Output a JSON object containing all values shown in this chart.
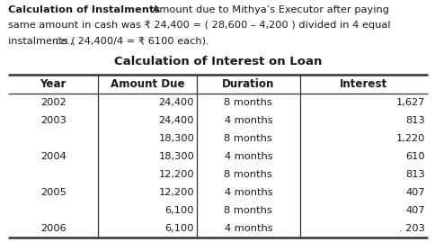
{
  "bold_text": "Calculation of Instalments",
  "line1_rest": " Amount due to Mithya’s Executor after paying",
  "line2": "same amount in cash was ₹ 24,400 = ( 28,600 – 4,200 ) divided in 4 equal",
  "line3_pre": "instalments (",
  "line3_italic": "i.e.,",
  "line3_post": " 24,400/4 = ₹ 6100 each).",
  "table_title": "Calculation of Interest on Loan",
  "headers": [
    "Year",
    "Amount Due",
    "Duration",
    "Interest"
  ],
  "rows": [
    [
      "2002",
      "24,400",
      "8 months",
      "1,627"
    ],
    [
      "2003",
      "24,400",
      "4 months",
      "813"
    ],
    [
      "",
      "18,300",
      "8 months",
      "1,220"
    ],
    [
      "2004",
      "18,300",
      "4 months",
      "610"
    ],
    [
      "",
      "12,200",
      "8 months",
      "813"
    ],
    [
      "2005",
      "12,200",
      "4 months",
      "407"
    ],
    [
      "",
      "6,100",
      "8 months",
      "407"
    ],
    [
      "2006",
      "6,100",
      "4 months",
      ". 203"
    ]
  ],
  "background_color": "#ffffff",
  "text_color": "#1a1a1a",
  "font_size": 8.2,
  "header_font_size": 8.6,
  "table_title_font_size": 9.5,
  "fig_width": 4.85,
  "fig_height": 2.69,
  "dpi": 100
}
